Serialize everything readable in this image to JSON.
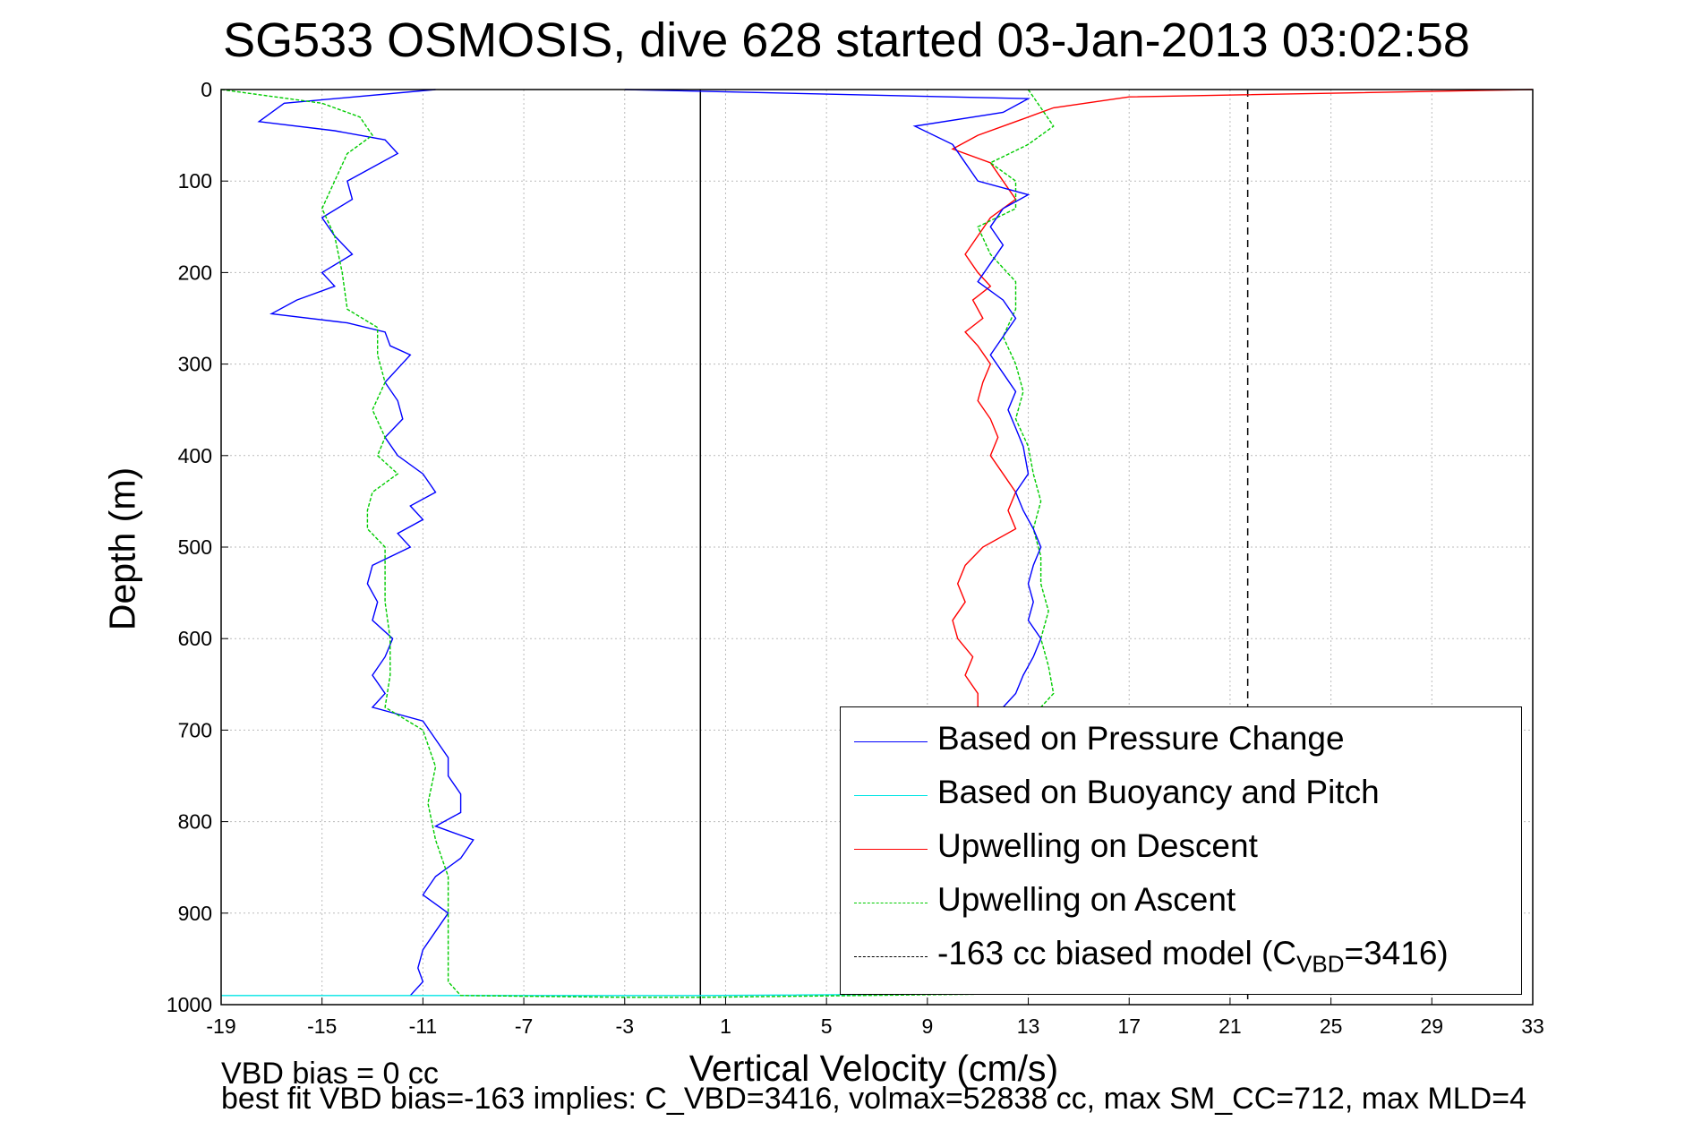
{
  "title": "SG533 OSMOSIS, dive 628 started 03-Jan-2013 03:02:58",
  "footer_line1": "VBD bias = 0 cc",
  "footer_line2": "best fit VBD bias=-163 implies: C_VBD=3416, volmax=52838 cc, max SM_CC=712, max MLD=4",
  "chart_data": {
    "type": "line",
    "xlabel": "Vertical Velocity (cm/s)",
    "ylabel": "Depth (m)",
    "xlim": [
      -19,
      33
    ],
    "ylim": [
      1000,
      0
    ],
    "y_reversed": true,
    "grid": true,
    "xticks": [
      -19,
      -15,
      -11,
      -7,
      -3,
      1,
      5,
      9,
      13,
      17,
      21,
      25,
      29,
      33
    ],
    "yticks": [
      0,
      100,
      200,
      300,
      400,
      500,
      600,
      700,
      800,
      900,
      1000
    ],
    "reference_lines": [
      {
        "x": 0,
        "style": "solid",
        "color": "#000000"
      },
      {
        "x": 21.7,
        "style": "dashed",
        "color": "#000000"
      }
    ],
    "legend_position": "bottom-right",
    "legend": [
      {
        "label": "Based on Pressure Change",
        "color": "#0000ff",
        "style": "solid"
      },
      {
        "label": "Based on Buoyancy and Pitch",
        "color": "#00e5e5",
        "style": "solid"
      },
      {
        "label": "Upwelling on Descent",
        "color": "#ff0000",
        "style": "solid"
      },
      {
        "label": "Upwelling on Ascent",
        "color": "#00cc00",
        "style": "dashed"
      },
      {
        "label": "-163 cc biased model (C",
        "sub": "VBD",
        "suffix": "=3416)",
        "color": "#000000",
        "style": "dashed"
      }
    ],
    "series": [
      {
        "name": "Based on Pressure Change",
        "color": "#0000ff",
        "points": [
          [
            -10.5,
            0
          ],
          [
            -16.5,
            15
          ],
          [
            -17.5,
            35
          ],
          [
            -14.5,
            45
          ],
          [
            -12.5,
            55
          ],
          [
            -12,
            70
          ],
          [
            -13,
            85
          ],
          [
            -14,
            100
          ],
          [
            -13.8,
            120
          ],
          [
            -15,
            140
          ],
          [
            -14.5,
            160
          ],
          [
            -13.8,
            180
          ],
          [
            -15,
            200
          ],
          [
            -14.5,
            215
          ],
          [
            -16,
            230
          ],
          [
            -17,
            245
          ],
          [
            -14,
            255
          ],
          [
            -12.5,
            265
          ],
          [
            -12.3,
            280
          ],
          [
            -11.5,
            290
          ],
          [
            -12,
            305
          ],
          [
            -12.5,
            320
          ],
          [
            -12,
            340
          ],
          [
            -11.8,
            360
          ],
          [
            -12.5,
            380
          ],
          [
            -12,
            400
          ],
          [
            -11,
            420
          ],
          [
            -10.5,
            440
          ],
          [
            -11.5,
            455
          ],
          [
            -11,
            470
          ],
          [
            -12,
            485
          ],
          [
            -11.5,
            500
          ],
          [
            -13,
            520
          ],
          [
            -13.2,
            540
          ],
          [
            -12.8,
            560
          ],
          [
            -13,
            580
          ],
          [
            -12.2,
            600
          ],
          [
            -12.5,
            620
          ],
          [
            -13,
            640
          ],
          [
            -12.5,
            660
          ],
          [
            -13,
            675
          ],
          [
            -11,
            690
          ],
          [
            -10.5,
            710
          ],
          [
            -10,
            730
          ],
          [
            -10,
            750
          ],
          [
            -9.5,
            770
          ],
          [
            -9.5,
            790
          ],
          [
            -10.5,
            805
          ],
          [
            -9,
            820
          ],
          [
            -9.5,
            840
          ],
          [
            -10.5,
            860
          ],
          [
            -11,
            880
          ],
          [
            -10,
            900
          ],
          [
            -10.5,
            920
          ],
          [
            -11,
            940
          ],
          [
            -11.2,
            960
          ],
          [
            -11,
            975
          ],
          [
            -11.5,
            990
          ]
        ]
      },
      {
        "name": "Based on Buoyancy and Pitch",
        "color": "#00e5e5",
        "points": [
          [
            -19,
            990
          ],
          [
            -3,
            990
          ],
          [
            0,
            990
          ],
          [
            12.5,
            988
          ]
        ]
      },
      {
        "name": "Upwelling on Descent",
        "color": "#ff0000",
        "points": [
          [
            33,
            0
          ],
          [
            17,
            8
          ],
          [
            14,
            20
          ],
          [
            12.5,
            35
          ],
          [
            11,
            50
          ],
          [
            10,
            65
          ],
          [
            11.5,
            80
          ],
          [
            12,
            100
          ],
          [
            12.5,
            120
          ],
          [
            11.5,
            140
          ],
          [
            11,
            160
          ],
          [
            10.5,
            180
          ],
          [
            11,
            200
          ],
          [
            11.5,
            215
          ],
          [
            10.8,
            230
          ],
          [
            11.2,
            250
          ],
          [
            10.5,
            265
          ],
          [
            11,
            280
          ],
          [
            11.5,
            300
          ],
          [
            11.2,
            320
          ],
          [
            11,
            340
          ],
          [
            11.5,
            360
          ],
          [
            11.8,
            380
          ],
          [
            11.5,
            400
          ],
          [
            12,
            420
          ],
          [
            12.5,
            440
          ],
          [
            12.2,
            460
          ],
          [
            12.5,
            480
          ],
          [
            11.2,
            500
          ],
          [
            10.5,
            520
          ],
          [
            10.2,
            540
          ],
          [
            10.5,
            560
          ],
          [
            10,
            580
          ],
          [
            10.2,
            600
          ],
          [
            10.8,
            620
          ],
          [
            10.5,
            640
          ],
          [
            11,
            660
          ],
          [
            11,
            675
          ]
        ]
      },
      {
        "name": "Upwelling on Ascent",
        "color": "#00cc00",
        "points": [
          [
            -19,
            0
          ],
          [
            -15,
            15
          ],
          [
            -13.5,
            30
          ],
          [
            -13,
            50
          ],
          [
            -14,
            70
          ],
          [
            -14.5,
            100
          ],
          [
            -15,
            130
          ],
          [
            -14.5,
            160
          ],
          [
            -14.2,
            200
          ],
          [
            -14,
            240
          ],
          [
            -12.8,
            260
          ],
          [
            -12.8,
            290
          ],
          [
            -12.5,
            320
          ],
          [
            -13,
            350
          ],
          [
            -12.5,
            380
          ],
          [
            -12.8,
            400
          ],
          [
            -12,
            420
          ],
          [
            -13,
            440
          ],
          [
            -13.2,
            460
          ],
          [
            -13.2,
            480
          ],
          [
            -12.5,
            500
          ],
          [
            -12.5,
            530
          ],
          [
            -12.5,
            560
          ],
          [
            -12.3,
            600
          ],
          [
            -12.3,
            640
          ],
          [
            -12.5,
            675
          ],
          [
            -11,
            700
          ],
          [
            -10.5,
            740
          ],
          [
            -10.8,
            780
          ],
          [
            -10.5,
            820
          ],
          [
            -10,
            860
          ],
          [
            -10,
            900
          ],
          [
            -10,
            940
          ],
          [
            -10,
            975
          ],
          [
            -9.5,
            990
          ],
          [
            -3,
            992
          ],
          [
            0,
            992
          ],
          [
            13,
            988
          ]
        ]
      },
      {
        "name": "Upwelling on Ascent (positive branch)",
        "color": "#00cc00",
        "points": [
          [
            13,
            0
          ],
          [
            13.5,
            20
          ],
          [
            14,
            40
          ],
          [
            13,
            60
          ],
          [
            11.5,
            80
          ],
          [
            12.5,
            100
          ],
          [
            12.5,
            130
          ],
          [
            11,
            150
          ],
          [
            11.5,
            180
          ],
          [
            12.5,
            210
          ],
          [
            12.5,
            240
          ],
          [
            12,
            270
          ],
          [
            12.5,
            300
          ],
          [
            12.8,
            330
          ],
          [
            12.5,
            360
          ],
          [
            13,
            390
          ],
          [
            13.2,
            420
          ],
          [
            13.5,
            450
          ],
          [
            13.2,
            480
          ],
          [
            13.5,
            510
          ],
          [
            13.5,
            540
          ],
          [
            13.8,
            570
          ],
          [
            13.5,
            600
          ],
          [
            13.8,
            630
          ],
          [
            14,
            660
          ],
          [
            13.5,
            675
          ]
        ]
      },
      {
        "name": "Based on Pressure Change (positive branch)",
        "color": "#0000ff",
        "points": [
          [
            -3,
            0
          ],
          [
            13,
            10
          ],
          [
            12,
            25
          ],
          [
            8.5,
            40
          ],
          [
            10,
            60
          ],
          [
            10.5,
            80
          ],
          [
            11,
            100
          ],
          [
            13,
            115
          ],
          [
            12,
            130
          ],
          [
            11.5,
            150
          ],
          [
            12,
            170
          ],
          [
            11.5,
            190
          ],
          [
            11,
            210
          ],
          [
            12,
            230
          ],
          [
            12.5,
            250
          ],
          [
            12,
            270
          ],
          [
            11.5,
            290
          ],
          [
            12,
            310
          ],
          [
            12.5,
            330
          ],
          [
            12.2,
            350
          ],
          [
            12.5,
            370
          ],
          [
            12.8,
            390
          ],
          [
            13,
            420
          ],
          [
            12.5,
            440
          ],
          [
            12.8,
            460
          ],
          [
            13.2,
            480
          ],
          [
            13.5,
            500
          ],
          [
            13.2,
            520
          ],
          [
            13,
            540
          ],
          [
            13.2,
            560
          ],
          [
            13,
            580
          ],
          [
            13.5,
            600
          ],
          [
            13.2,
            620
          ],
          [
            12.8,
            640
          ],
          [
            12.5,
            660
          ],
          [
            12,
            675
          ]
        ]
      }
    ]
  }
}
